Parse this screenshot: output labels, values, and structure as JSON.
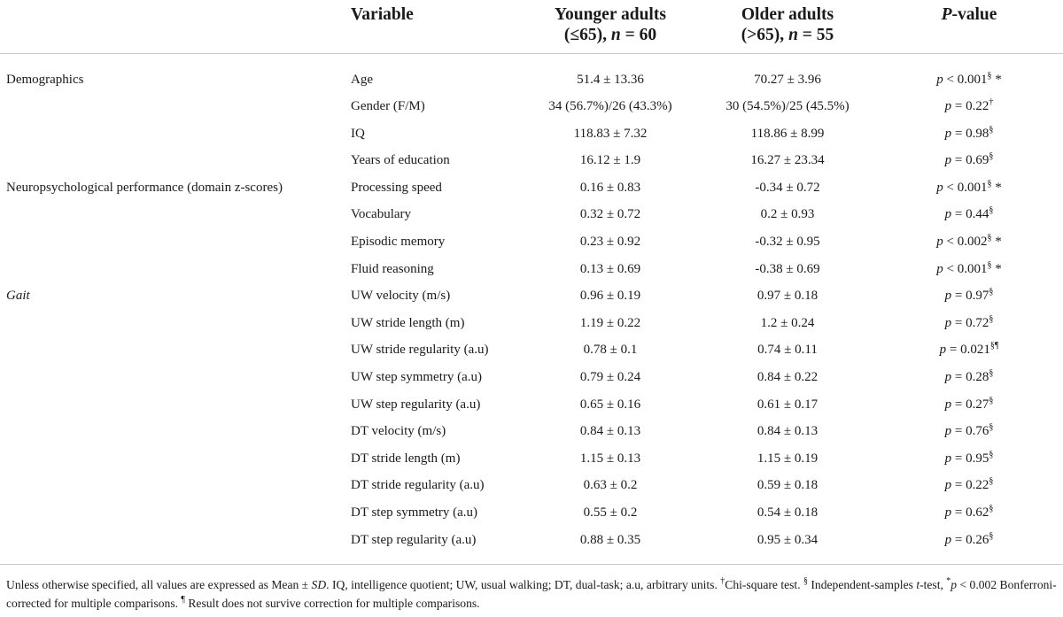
{
  "header": {
    "variable": "Variable",
    "younger_line1": "Younger adults",
    "younger_line2_pre": "(≤65), ",
    "younger_n": "n",
    "younger_line2_post": " = 60",
    "older_line1": "Older adults",
    "older_line2_pre": "(>65), ",
    "older_n": "n",
    "older_line2_post": " = 55",
    "pvalue_italic": "P",
    "pvalue_rest": "-value"
  },
  "rows": [
    {
      "category": "Demographics",
      "category_italic": false,
      "variable": "Age",
      "younger": "51.4 ± 13.36",
      "older": "70.27 ± 3.96",
      "p_main": "p < 0.001",
      "p_sup": "§",
      "p_star": " *"
    },
    {
      "category": "",
      "category_italic": false,
      "variable": "Gender (F/M)",
      "younger": "34 (56.7%)/26 (43.3%)",
      "older": "30 (54.5%)/25 (45.5%)",
      "p_main": "p = 0.22",
      "p_sup": "†",
      "p_star": ""
    },
    {
      "category": "",
      "category_italic": false,
      "variable": "IQ",
      "younger": "118.83 ± 7.32",
      "older": "118.86 ± 8.99",
      "p_main": "p = 0.98",
      "p_sup": "§",
      "p_star": ""
    },
    {
      "category": "",
      "category_italic": false,
      "variable": "Years of education",
      "younger": "16.12 ± 1.9",
      "older": "16.27 ± 23.34",
      "p_main": "p = 0.69",
      "p_sup": "§",
      "p_star": ""
    },
    {
      "category": "Neuropsychological performance (domain z-scores)",
      "category_italic": false,
      "variable": "Processing speed",
      "younger": "0.16 ± 0.83",
      "older": "-0.34 ± 0.72",
      "p_main": "p < 0.001",
      "p_sup": "§",
      "p_star": " *"
    },
    {
      "category": "",
      "category_italic": false,
      "variable": "Vocabulary",
      "younger": "0.32 ± 0.72",
      "older": "0.2 ± 0.93",
      "p_main": "p = 0.44",
      "p_sup": "§",
      "p_star": ""
    },
    {
      "category": "",
      "category_italic": false,
      "variable": "Episodic memory",
      "younger": "0.23 ± 0.92",
      "older": "-0.32 ± 0.95",
      "p_main": "p < 0.002",
      "p_sup": "§",
      "p_star": " *"
    },
    {
      "category": "",
      "category_italic": false,
      "variable": "Fluid reasoning",
      "younger": "0.13 ± 0.69",
      "older": "-0.38 ± 0.69",
      "p_main": "p < 0.001",
      "p_sup": "§",
      "p_star": " *"
    },
    {
      "category": "Gait",
      "category_italic": true,
      "variable": "UW velocity (m/s)",
      "younger": "0.96 ± 0.19",
      "older": "0.97 ± 0.18",
      "p_main": "p = 0.97",
      "p_sup": "§",
      "p_star": ""
    },
    {
      "category": "",
      "category_italic": false,
      "variable": "UW stride length (m)",
      "younger": "1.19 ± 0.22",
      "older": "1.2 ± 0.24",
      "p_main": "p = 0.72",
      "p_sup": "§",
      "p_star": ""
    },
    {
      "category": "",
      "category_italic": false,
      "variable": "UW stride regularity (a.u)",
      "younger": "0.78 ± 0.1",
      "older": "0.74 ± 0.11",
      "p_main": "p = 0.021",
      "p_sup": "§¶",
      "p_star": ""
    },
    {
      "category": "",
      "category_italic": false,
      "variable": "UW step symmetry (a.u)",
      "younger": "0.79 ± 0.24",
      "older": "0.84 ± 0.22",
      "p_main": "p = 0.28",
      "p_sup": "§",
      "p_star": ""
    },
    {
      "category": "",
      "category_italic": false,
      "variable": "UW step regularity (a.u)",
      "younger": "0.65 ± 0.16",
      "older": "0.61 ± 0.17",
      "p_main": "p = 0.27",
      "p_sup": "§",
      "p_star": ""
    },
    {
      "category": "",
      "category_italic": false,
      "variable": "DT velocity (m/s)",
      "younger": "0.84 ± 0.13",
      "older": "0.84 ± 0.13",
      "p_main": "p = 0.76",
      "p_sup": "§",
      "p_star": ""
    },
    {
      "category": "",
      "category_italic": false,
      "variable": "DT stride length (m)",
      "younger": "1.15 ± 0.13",
      "older": "1.15 ± 0.19",
      "p_main": "p = 0.95",
      "p_sup": "§",
      "p_star": ""
    },
    {
      "category": "",
      "category_italic": false,
      "variable": "DT stride regularity (a.u)",
      "younger": "0.63 ± 0.2",
      "older": "0.59 ± 0.18",
      "p_main": "p = 0.22",
      "p_sup": "§",
      "p_star": ""
    },
    {
      "category": "",
      "category_italic": false,
      "variable": "DT step symmetry (a.u)",
      "younger": "0.55 ± 0.2",
      "older": "0.54 ± 0.18",
      "p_main": "p = 0.62",
      "p_sup": "§",
      "p_star": ""
    },
    {
      "category": "",
      "category_italic": false,
      "variable": "DT step regularity (a.u)",
      "younger": "0.88 ± 0.35",
      "older": "0.95 ± 0.34",
      "p_main": "p = 0.26",
      "p_sup": "§",
      "p_star": ""
    }
  ],
  "footnote": {
    "seg1": "Unless otherwise specified, all values are expressed as Mean ± ",
    "sd": "SD",
    "seg2": ". IQ, intelligence quotient; UW, usual walking; DT, dual-task; a.u, arbitrary units. ",
    "dagger": "†",
    "seg3": "Chi-square test. ",
    "section": "§",
    "seg4": " Independent-samples ",
    "t": "t",
    "seg5": "-test, ",
    "star": "*",
    "p": "p",
    "seg6": " < 0.002 Bonferroni-corrected for multiple comparisons. ",
    "pilcrow": "¶",
    "seg7": " Result does not survive correction for multiple comparisons."
  }
}
